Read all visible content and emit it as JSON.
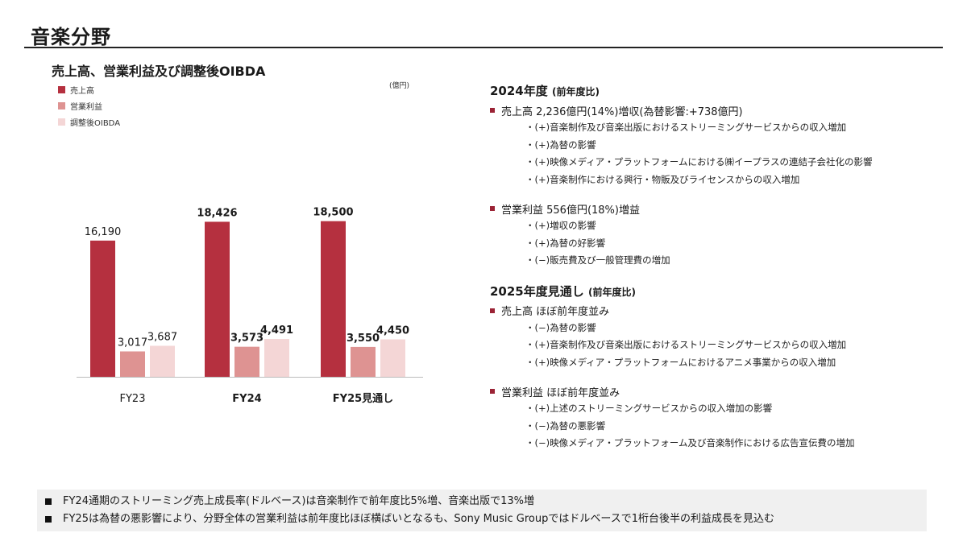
{
  "page_title": "音楽分野",
  "chart_title": "売上高、営業利益及び調整後OIBDA",
  "unit_label": "(億円)",
  "legend": [
    {
      "label": "売上高",
      "color": "#b5303f"
    },
    {
      "label": "営業利益",
      "color": "#de9392"
    },
    {
      "label": "調整後OIBDA",
      "color": "#f4d6d6"
    }
  ],
  "chart_data": {
    "type": "bar",
    "title": "売上高、営業利益及び調整後OIBDA",
    "ylabel": "(億円)",
    "categories": [
      "FY23",
      "FY24",
      "FY25見通し"
    ],
    "category_bold": [
      false,
      true,
      true
    ],
    "series": [
      {
        "name": "売上高",
        "color": "#b5303f",
        "values": [
          16190,
          18426,
          18500
        ],
        "labels": [
          "16,190",
          "18,426",
          "18,500"
        ]
      },
      {
        "name": "営業利益",
        "color": "#de9392",
        "values": [
          3017,
          3573,
          3550
        ],
        "labels": [
          "3,017",
          "3,573",
          "3,550"
        ]
      },
      {
        "name": "調整後OIBDA",
        "color": "#f4d6d6",
        "values": [
          3687,
          4491,
          4450
        ],
        "labels": [
          "3,687",
          "4,491",
          "4,450"
        ]
      }
    ],
    "ylim": [
      0,
      20000
    ],
    "grid": false
  },
  "right": {
    "s1_title": "2024年度",
    "s1_title_note": "(前年度比)",
    "s1_item1": "売上高 2,236億円(14%)増収(為替影響:+738億円)",
    "s1_item1_subs": [
      "・(+)音楽制作及び音楽出版におけるストリーミングサービスからの収入増加",
      "・(+)為替の影響",
      "・(+)映像メディア・プラットフォームにおける㈱イープラスの連結子会社化の影響",
      "・(+)音楽制作における興行・物販及びライセンスからの収入増加"
    ],
    "s1_item2": "営業利益 556億円(18%)増益",
    "s1_item2_subs": [
      "・(+)増収の影響",
      "・(+)為替の好影響",
      "・(−)販売費及び一般管理費の増加"
    ],
    "s2_title": "2025年度見通し",
    "s2_title_note": "(前年度比)",
    "s2_item1": "売上高 ほぼ前年度並み",
    "s2_item1_subs": [
      "・(−)為替の影響",
      "・(+)音楽制作及び音楽出版におけるストリーミングサービスからの収入増加",
      "・(+)映像メディア・プラットフォームにおけるアニメ事業からの収入増加"
    ],
    "s2_item2": "営業利益 ほぼ前年度並み",
    "s2_item2_subs": [
      "・(+)上述のストリーミングサービスからの収入増加の影響",
      "・(−)為替の悪影響",
      "・(−)映像メディア・プラットフォーム及び音楽制作における広告宣伝費の増加"
    ]
  },
  "notes": [
    "FY24通期のストリーミング売上成長率(ドルベース)は音楽制作で前年度比5%増、音楽出版で13%増",
    "FY25は為替の悪影響により、分野全体の営業利益は前年度比ほぼ横ばいとなるも、Sony Music Groupではドルベースで1桁台後半の利益成長を見込む"
  ]
}
